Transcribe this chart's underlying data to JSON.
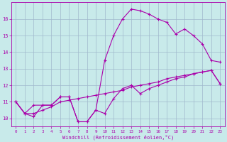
{
  "line1_x": [
    0,
    1,
    2,
    3,
    4,
    5,
    6,
    7,
    8,
    9,
    10,
    11,
    12,
    13,
    14,
    15,
    16,
    17,
    18,
    19,
    20,
    21,
    22,
    23
  ],
  "line1_y": [
    11.0,
    10.3,
    10.1,
    10.8,
    10.8,
    11.3,
    11.3,
    9.8,
    9.8,
    10.5,
    10.3,
    11.2,
    11.8,
    12.0,
    11.5,
    11.8,
    12.0,
    12.2,
    12.4,
    12.5,
    12.7,
    12.8,
    12.9,
    12.1
  ],
  "line2_x": [
    0,
    1,
    2,
    3,
    4,
    5,
    6,
    7,
    8,
    9,
    10,
    11,
    12,
    13,
    14,
    15,
    16,
    17,
    18,
    19,
    20,
    21,
    22,
    23
  ],
  "line2_y": [
    11.0,
    10.3,
    10.3,
    10.5,
    10.7,
    11.0,
    11.1,
    11.2,
    11.3,
    11.4,
    11.5,
    11.6,
    11.7,
    11.9,
    12.0,
    12.1,
    12.2,
    12.4,
    12.5,
    12.6,
    12.7,
    12.8,
    12.9,
    12.1
  ],
  "line3_x": [
    0,
    1,
    2,
    3,
    4,
    5,
    6,
    7,
    8,
    9,
    10,
    11,
    12,
    13,
    14,
    15,
    16,
    17,
    18,
    19,
    20,
    21,
    22,
    23
  ],
  "line3_y": [
    11.0,
    10.3,
    10.8,
    10.8,
    10.8,
    11.3,
    11.3,
    9.8,
    9.8,
    10.5,
    13.5,
    15.0,
    16.0,
    16.6,
    16.5,
    16.3,
    16.0,
    15.8,
    15.1,
    15.4,
    15.0,
    14.5,
    13.5,
    13.4
  ],
  "line_color": "#aa00aa",
  "bg_color": "#c8eaea",
  "grid_color": "#a0b8cc",
  "xlabel": "Windchill (Refroidissement éolien,°C)",
  "xlim": [
    -0.5,
    23.5
  ],
  "ylim": [
    9.5,
    17.0
  ],
  "xticks": [
    0,
    1,
    2,
    3,
    4,
    5,
    6,
    7,
    8,
    9,
    10,
    11,
    12,
    13,
    14,
    15,
    16,
    17,
    18,
    19,
    20,
    21,
    22,
    23
  ],
  "yticks": [
    10,
    11,
    12,
    13,
    14,
    15,
    16
  ],
  "marker": "+",
  "markersize": 3.5,
  "linewidth": 0.8
}
